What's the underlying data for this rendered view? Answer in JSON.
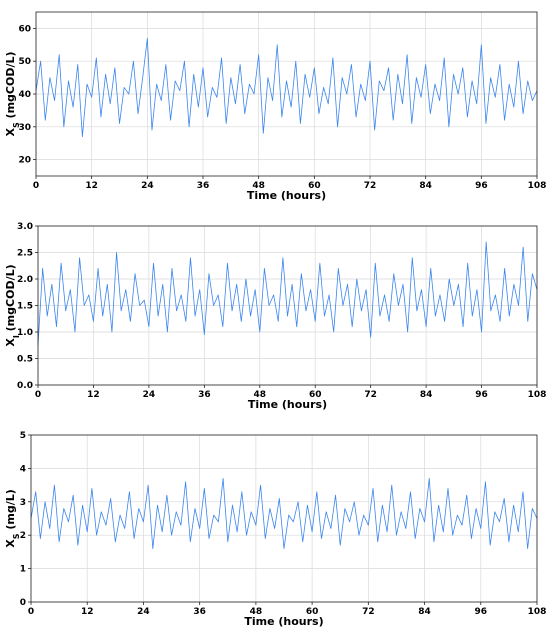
{
  "chart_data": [
    {
      "type": "line",
      "xlabel": "Time (hours)",
      "ylabel": {
        "base": "X",
        "sub": "S",
        "unit": " (mgCOD/L)"
      },
      "xlim": [
        0,
        108
      ],
      "ylim": [
        15,
        65
      ],
      "xticks": [
        0,
        12,
        24,
        36,
        48,
        60,
        72,
        84,
        96,
        108
      ],
      "yticks": [
        20,
        30,
        40,
        50,
        60
      ],
      "ytick_labels": [
        "20",
        "30",
        "40",
        "50",
        "60"
      ],
      "grid": true,
      "series": [
        {
          "color": "#3a86f0",
          "x": [
            0,
            1,
            2,
            3,
            4,
            5,
            6,
            7,
            8,
            9,
            10,
            11,
            12,
            13,
            14,
            15,
            16,
            17,
            18,
            19,
            20,
            21,
            22,
            23,
            24,
            25,
            26,
            27,
            28,
            29,
            30,
            31,
            32,
            33,
            34,
            35,
            36,
            37,
            38,
            39,
            40,
            41,
            42,
            43,
            44,
            45,
            46,
            47,
            48,
            49,
            50,
            51,
            52,
            53,
            54,
            55,
            56,
            57,
            58,
            59,
            60,
            61,
            62,
            63,
            64,
            65,
            66,
            67,
            68,
            69,
            70,
            71,
            72,
            73,
            74,
            75,
            76,
            77,
            78,
            79,
            80,
            81,
            82,
            83,
            84,
            85,
            86,
            87,
            88,
            89,
            90,
            91,
            92,
            93,
            94,
            95,
            96,
            97,
            98,
            99,
            100,
            101,
            102,
            103,
            104,
            105,
            106,
            107,
            108
          ],
          "y": [
            41,
            50,
            32,
            45,
            38,
            52,
            30,
            44,
            36,
            49,
            27,
            43,
            39,
            51,
            33,
            46,
            37,
            48,
            31,
            42,
            40,
            50,
            34,
            45,
            57,
            29,
            43,
            38,
            49,
            32,
            44,
            41,
            50,
            30,
            46,
            36,
            48,
            33,
            42,
            39,
            51,
            31,
            45,
            37,
            49,
            34,
            43,
            40,
            52,
            28,
            45,
            38,
            55,
            33,
            44,
            36,
            50,
            31,
            46,
            39,
            48,
            34,
            42,
            37,
            51,
            30,
            45,
            40,
            49,
            33,
            43,
            38,
            50,
            29,
            44,
            41,
            48,
            32,
            46,
            37,
            52,
            31,
            45,
            39,
            49,
            34,
            43,
            38,
            51,
            30,
            46,
            40,
            48,
            33,
            44,
            37,
            55,
            31,
            45,
            39,
            49,
            32,
            43,
            36,
            50,
            34,
            44,
            38,
            41
          ]
        }
      ]
    },
    {
      "type": "line",
      "xlabel": "Time (hours)",
      "ylabel": {
        "base": "X",
        "sub": "I",
        "unit": " (mgCOD/L)"
      },
      "xlim": [
        0,
        108
      ],
      "ylim": [
        0,
        3
      ],
      "xticks": [
        0,
        12,
        24,
        36,
        48,
        60,
        72,
        84,
        96,
        108
      ],
      "yticks": [
        0,
        0.5,
        1.0,
        1.5,
        2.0,
        2.5,
        3.0
      ],
      "ytick_labels": [
        "0.0",
        "0.5",
        "1.0",
        "1.5",
        "2.0",
        "2.5",
        "3.0"
      ],
      "grid": true,
      "series": [
        {
          "color": "#3a86f0",
          "x": [
            0,
            1,
            2,
            3,
            4,
            5,
            6,
            7,
            8,
            9,
            10,
            11,
            12,
            13,
            14,
            15,
            16,
            17,
            18,
            19,
            20,
            21,
            22,
            23,
            24,
            25,
            26,
            27,
            28,
            29,
            30,
            31,
            32,
            33,
            34,
            35,
            36,
            37,
            38,
            39,
            40,
            41,
            42,
            43,
            44,
            45,
            46,
            47,
            48,
            49,
            50,
            51,
            52,
            53,
            54,
            55,
            56,
            57,
            58,
            59,
            60,
            61,
            62,
            63,
            64,
            65,
            66,
            67,
            68,
            69,
            70,
            71,
            72,
            73,
            74,
            75,
            76,
            77,
            78,
            79,
            80,
            81,
            82,
            83,
            84,
            85,
            86,
            87,
            88,
            89,
            90,
            91,
            92,
            93,
            94,
            95,
            96,
            97,
            98,
            99,
            100,
            101,
            102,
            103,
            104,
            105,
            106,
            107,
            108
          ],
          "y": [
            0.75,
            2.2,
            1.3,
            1.9,
            1.1,
            2.3,
            1.4,
            1.8,
            1.0,
            2.4,
            1.5,
            1.7,
            1.2,
            2.2,
            1.3,
            1.9,
            1.0,
            2.5,
            1.4,
            1.8,
            1.2,
            2.1,
            1.5,
            1.6,
            1.1,
            2.3,
            1.3,
            1.9,
            1.0,
            2.2,
            1.4,
            1.7,
            1.2,
            2.4,
            1.3,
            1.8,
            0.95,
            2.1,
            1.5,
            1.7,
            1.1,
            2.3,
            1.4,
            1.9,
            1.2,
            2.0,
            1.3,
            1.8,
            1.0,
            2.2,
            1.5,
            1.7,
            1.2,
            2.4,
            1.3,
            1.9,
            1.1,
            2.1,
            1.4,
            1.8,
            1.2,
            2.3,
            1.3,
            1.7,
            1.0,
            2.2,
            1.5,
            1.9,
            1.1,
            2.0,
            1.4,
            1.8,
            0.9,
            2.3,
            1.3,
            1.7,
            1.2,
            2.1,
            1.5,
            1.9,
            1.0,
            2.4,
            1.4,
            1.8,
            1.1,
            2.2,
            1.3,
            1.7,
            1.2,
            2.0,
            1.5,
            1.9,
            1.1,
            2.3,
            1.3,
            1.8,
            1.0,
            2.7,
            1.4,
            1.7,
            1.2,
            2.2,
            1.3,
            1.9,
            1.5,
            2.6,
            1.2,
            2.1,
            1.8
          ]
        }
      ]
    },
    {
      "type": "line",
      "xlabel": "Time (hours)",
      "ylabel": {
        "base": "X",
        "sub": "S",
        "unit": " (mg/L)"
      },
      "xlim": [
        0,
        108
      ],
      "ylim": [
        0,
        5
      ],
      "xticks": [
        0,
        12,
        24,
        36,
        48,
        60,
        72,
        84,
        96,
        108
      ],
      "yticks": [
        0,
        1,
        2,
        3,
        4,
        5
      ],
      "ytick_labels": [
        "0",
        "1",
        "2",
        "3",
        "4",
        "5"
      ],
      "grid": true,
      "series": [
        {
          "color": "#3a86f0",
          "x": [
            0,
            1,
            2,
            3,
            4,
            5,
            6,
            7,
            8,
            9,
            10,
            11,
            12,
            13,
            14,
            15,
            16,
            17,
            18,
            19,
            20,
            21,
            22,
            23,
            24,
            25,
            26,
            27,
            28,
            29,
            30,
            31,
            32,
            33,
            34,
            35,
            36,
            37,
            38,
            39,
            40,
            41,
            42,
            43,
            44,
            45,
            46,
            47,
            48,
            49,
            50,
            51,
            52,
            53,
            54,
            55,
            56,
            57,
            58,
            59,
            60,
            61,
            62,
            63,
            64,
            65,
            66,
            67,
            68,
            69,
            70,
            71,
            72,
            73,
            74,
            75,
            76,
            77,
            78,
            79,
            80,
            81,
            82,
            83,
            84,
            85,
            86,
            87,
            88,
            89,
            90,
            91,
            92,
            93,
            94,
            95,
            96,
            97,
            98,
            99,
            100,
            101,
            102,
            103,
            104,
            105,
            106,
            107,
            108
          ],
          "y": [
            2.5,
            3.3,
            1.9,
            3.0,
            2.2,
            3.5,
            1.8,
            2.8,
            2.4,
            3.2,
            1.7,
            2.9,
            2.1,
            3.4,
            2.0,
            2.7,
            2.3,
            3.1,
            1.8,
            2.6,
            2.2,
            3.3,
            1.9,
            2.8,
            2.4,
            3.5,
            1.6,
            2.9,
            2.1,
            3.2,
            2.0,
            2.7,
            2.3,
            3.6,
            1.8,
            2.8,
            2.2,
            3.4,
            1.9,
            2.6,
            2.4,
            3.7,
            1.8,
            2.9,
            2.1,
            3.3,
            2.0,
            2.7,
            2.3,
            3.5,
            1.9,
            2.8,
            2.2,
            3.1,
            1.6,
            2.6,
            2.4,
            3.0,
            1.8,
            2.9,
            2.1,
            3.3,
            1.9,
            2.7,
            2.2,
            3.2,
            1.7,
            2.8,
            2.4,
            3.0,
            2.0,
            2.6,
            2.3,
            3.4,
            1.8,
            2.9,
            2.1,
            3.5,
            2.0,
            2.7,
            2.2,
            3.3,
            1.9,
            2.8,
            2.4,
            3.7,
            1.8,
            2.9,
            2.1,
            3.4,
            2.0,
            2.6,
            2.3,
            3.2,
            1.9,
            2.8,
            2.2,
            3.6,
            1.7,
            2.7,
            2.4,
            3.1,
            1.8,
            2.9,
            2.1,
            3.3,
            1.6,
            2.8,
            2.5
          ]
        }
      ]
    }
  ]
}
